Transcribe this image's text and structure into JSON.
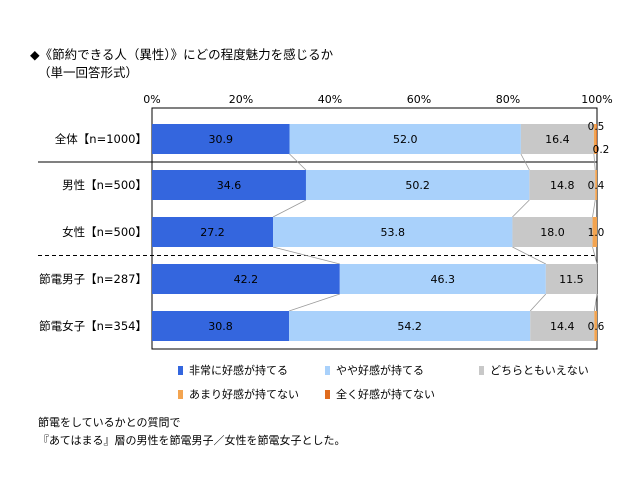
{
  "title": "◆《節約できる人（異性）》にどの程度魅力を感じるか",
  "subtitle": "（単一回答形式）",
  "chart_data": {
    "type": "bar",
    "orientation": "horizontal",
    "stacked": true,
    "xlim": [
      0,
      100
    ],
    "x_ticks": [
      "0%",
      "20%",
      "40%",
      "60%",
      "80%",
      "100%"
    ],
    "categories": [
      "全体【n=1000】",
      "男性【n=500】",
      "女性【n=500】",
      "節電男子【n=287】",
      "節電女子【n=354】"
    ],
    "series": [
      {
        "name": "非常に好感が持てる",
        "color": "#3466de",
        "values": [
          30.9,
          34.6,
          27.2,
          42.2,
          30.8
        ]
      },
      {
        "name": "やや好感が持てる",
        "color": "#a9d1fb",
        "values": [
          52.0,
          50.2,
          53.8,
          46.3,
          54.2
        ]
      },
      {
        "name": "どちらともいえない",
        "color": "#c8c8c8",
        "values": [
          16.4,
          14.8,
          18.0,
          11.5,
          14.4
        ]
      },
      {
        "name": "あまり好感が持てない",
        "color": "#f3a450",
        "values": [
          0.5,
          0.4,
          1.0,
          0.0,
          0.6
        ]
      },
      {
        "name": "全く好感が持てない",
        "color": "#e06c1e",
        "values": [
          0.2,
          0.0,
          0.0,
          0.0,
          0.0
        ]
      }
    ],
    "data_labels": [
      [
        "30.9",
        "52.0",
        "16.4",
        "0.5",
        "0.2"
      ],
      [
        "34.6",
        "50.2",
        "14.8",
        "0.4",
        ""
      ],
      [
        "27.2",
        "53.8",
        "18.0",
        "1.0",
        ""
      ],
      [
        "42.2",
        "46.3",
        "11.5",
        "",
        ""
      ],
      [
        "30.8",
        "54.2",
        "14.4",
        "0.6",
        ""
      ]
    ],
    "legend_position": "bottom",
    "separators": {
      "solid_after_row": 0,
      "dashed_after_row": 2
    }
  },
  "notes": [
    "節電をしているかとの質問で",
    "『あてはまる』層の男性を節電男子／女性を節電女子とした。"
  ]
}
